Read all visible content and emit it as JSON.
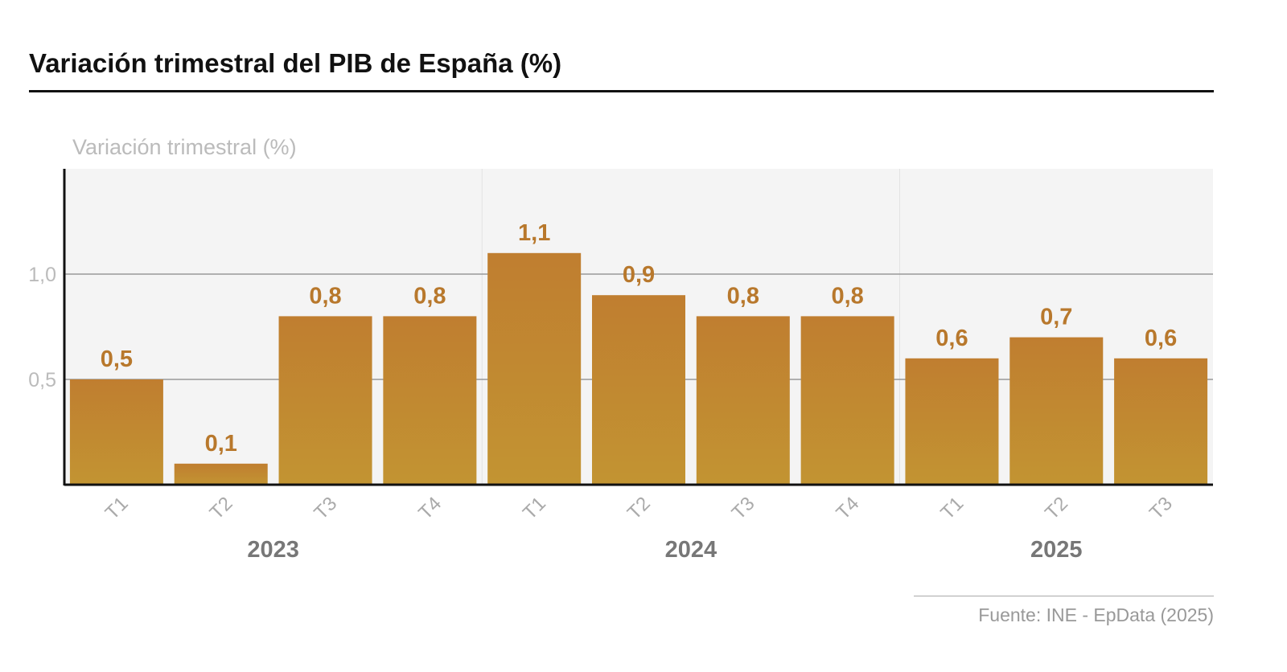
{
  "title": "Variación trimestral del PIB de España (%)",
  "source": "Fuente: INE - EpData (2025)",
  "chart_data": {
    "type": "bar",
    "title": "Variación trimestral del PIB de España (%)",
    "ylabel": "Variación trimestral (%)",
    "xlabel": "",
    "categories": [
      "T1",
      "T2",
      "T3",
      "T4",
      "T1",
      "T2",
      "T3",
      "T4",
      "T1",
      "T2",
      "T3"
    ],
    "groups": [
      {
        "label": "2023",
        "count": 4
      },
      {
        "label": "2024",
        "count": 4
      },
      {
        "label": "2025",
        "count": 3
      }
    ],
    "values": [
      0.5,
      0.1,
      0.8,
      0.8,
      1.1,
      0.9,
      0.8,
      0.8,
      0.6,
      0.7,
      0.6
    ],
    "value_labels": [
      "0,5",
      "0,1",
      "0,8",
      "0,8",
      "1,1",
      "0,9",
      "0,8",
      "0,8",
      "0,6",
      "0,7",
      "0,6"
    ],
    "yticks": [
      {
        "value": 0.5,
        "label": "0,5"
      },
      {
        "value": 1.0,
        "label": "1,0"
      }
    ],
    "ylim": [
      0,
      1.5
    ],
    "grid": true,
    "legend": "none",
    "colors": {
      "bar_top": "#c07e30",
      "bar_bottom": "#c29432",
      "label": "#b8782c",
      "plot_bg": "#f4f4f4"
    }
  }
}
